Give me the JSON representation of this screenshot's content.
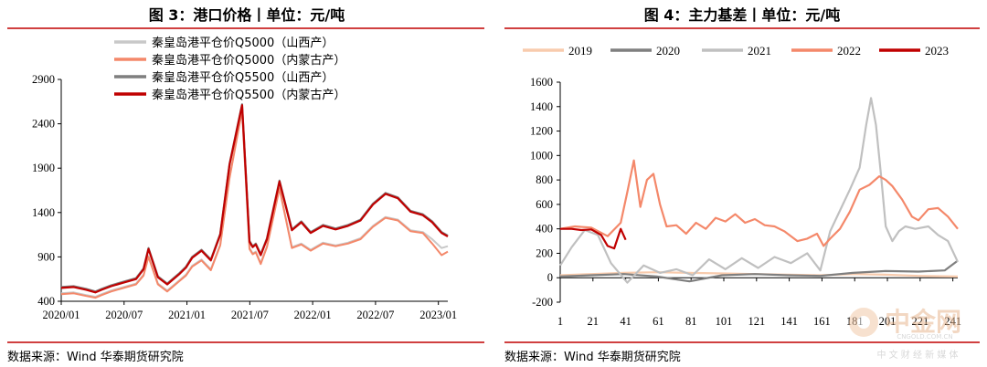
{
  "chart_data": [
    {
      "type": "line",
      "title": "图 3：港口价格丨单位：元/吨",
      "x_tick_labels": [
        "2020/01",
        "2020/07",
        "2021/01",
        "2021/07",
        "2022/01",
        "2022/07",
        "2023/01"
      ],
      "ylim": [
        400,
        2900
      ],
      "y_ticks": [
        400,
        900,
        1400,
        1900,
        2400,
        2900
      ],
      "grid": false,
      "legend_placement": "top-center",
      "series": [
        {
          "name": "秦皇岛港平仓价Q5000（山西产）",
          "color": "#c8c8c8",
          "x": [
            0,
            2,
            4,
            5.5,
            6.5,
            8,
            10,
            12,
            13.2,
            14,
            15.5,
            17,
            19,
            20,
            21,
            22.5,
            24,
            25.5,
            27,
            29,
            30.2,
            30.7,
            31.2,
            32,
            33,
            35,
            37,
            38.5,
            40,
            42,
            44,
            46,
            48,
            50,
            52,
            54,
            56,
            58,
            59.5,
            61,
            62
          ],
          "values": [
            490,
            500,
            470,
            450,
            480,
            520,
            560,
            600,
            700,
            910,
            600,
            520,
            640,
            700,
            800,
            870,
            760,
            1040,
            1800,
            2560,
            1000,
            940,
            960,
            830,
            1020,
            1680,
            1010,
            1050,
            980,
            1060,
            1030,
            1060,
            1110,
            1250,
            1350,
            1320,
            1200,
            1180,
            1100,
            1000,
            1020
          ]
        },
        {
          "name": "秦皇岛港平仓价Q5000（内蒙古产）",
          "color": "#f4886a",
          "x": [
            0,
            2,
            4,
            5.5,
            6.5,
            8,
            10,
            12,
            13.2,
            14,
            15.5,
            17,
            19,
            20,
            21,
            22.5,
            24,
            25.5,
            27,
            29,
            30.2,
            30.7,
            31.2,
            32,
            33,
            35,
            37,
            38.5,
            40,
            42,
            44,
            46,
            48,
            50,
            52,
            54,
            56,
            58,
            59.5,
            61,
            62
          ],
          "values": [
            480,
            490,
            460,
            440,
            470,
            510,
            550,
            590,
            690,
            900,
            590,
            510,
            630,
            690,
            790,
            860,
            750,
            1030,
            1790,
            2550,
            990,
            930,
            950,
            820,
            1010,
            1670,
            1000,
            1040,
            970,
            1050,
            1020,
            1050,
            1100,
            1240,
            1340,
            1310,
            1190,
            1170,
            1050,
            920,
            960
          ]
        },
        {
          "name": "秦皇岛港平仓价Q5500（山西产）",
          "color": "#7f7f7f",
          "x": [
            0,
            2,
            4,
            5.5,
            6.5,
            8,
            10,
            12,
            13.2,
            14,
            15.5,
            17,
            19,
            20,
            21,
            22.5,
            24,
            25.5,
            27,
            29,
            30.2,
            30.7,
            31.2,
            32,
            33,
            35,
            37,
            38.5,
            40,
            42,
            44,
            46,
            48,
            50,
            52,
            54,
            56,
            58,
            59.5,
            61,
            62
          ],
          "values": [
            560,
            570,
            540,
            510,
            540,
            580,
            620,
            660,
            770,
            1000,
            680,
            600,
            720,
            790,
            900,
            980,
            870,
            1160,
            1950,
            2620,
            1080,
            1020,
            1050,
            930,
            1110,
            1760,
            1210,
            1300,
            1180,
            1260,
            1220,
            1260,
            1320,
            1500,
            1620,
            1570,
            1420,
            1380,
            1300,
            1180,
            1140
          ]
        },
        {
          "name": "秦皇岛港平仓价Q5500（内蒙古产）",
          "color": "#c00000",
          "x": [
            0,
            2,
            4,
            5.5,
            6.5,
            8,
            10,
            12,
            13.2,
            14,
            15.5,
            17,
            19,
            20,
            21,
            22.5,
            24,
            25.5,
            27,
            29,
            30.2,
            30.7,
            31.2,
            32,
            33,
            35,
            37,
            38.5,
            40,
            42,
            44,
            46,
            48,
            50,
            52,
            54,
            56,
            58,
            59.5,
            61,
            62
          ],
          "values": [
            550,
            560,
            530,
            500,
            530,
            570,
            610,
            650,
            760,
            990,
            670,
            590,
            710,
            780,
            890,
            970,
            860,
            1150,
            1940,
            2610,
            1070,
            1010,
            1040,
            920,
            1100,
            1750,
            1200,
            1290,
            1170,
            1250,
            1210,
            1250,
            1310,
            1490,
            1610,
            1560,
            1410,
            1370,
            1290,
            1170,
            1130
          ]
        }
      ],
      "source": "数据来源：Wind  华泰期货研究院"
    },
    {
      "type": "line",
      "title": "图 4：主力基差丨单位：元/吨",
      "x_ticks": [
        1,
        21,
        41,
        61,
        81,
        101,
        121,
        141,
        161,
        181,
        201,
        221,
        241
      ],
      "x_tick_labels": [
        "1",
        "21",
        "41",
        "61",
        "81",
        "101",
        "121",
        "141",
        "161",
        "181",
        "201",
        "221",
        "241"
      ],
      "xlim": [
        1,
        244
      ],
      "ylim": [
        -200,
        1600
      ],
      "y_ticks": [
        -200,
        0,
        200,
        400,
        600,
        800,
        1000,
        1200,
        1400,
        1600
      ],
      "grid": false,
      "legend_placement": "top",
      "series": [
        {
          "name": "2019",
          "color": "#f8cbad",
          "x": [
            1,
            20,
            40,
            60,
            80,
            100,
            120,
            140,
            160,
            180,
            200,
            220,
            244
          ],
          "values": [
            20,
            30,
            40,
            45,
            40,
            35,
            30,
            25,
            20,
            30,
            25,
            15,
            10
          ]
        },
        {
          "name": "2020",
          "color": "#7f7f7f",
          "x": [
            1,
            20,
            40,
            60,
            80,
            100,
            120,
            140,
            160,
            180,
            200,
            220,
            236,
            244
          ],
          "values": [
            10,
            20,
            30,
            10,
            -30,
            20,
            30,
            20,
            15,
            40,
            55,
            50,
            60,
            140
          ]
        },
        {
          "name": "2021",
          "color": "#c0c0c0",
          "x": [
            1,
            8,
            16,
            24,
            32,
            42,
            52,
            62,
            72,
            82,
            92,
            102,
            112,
            122,
            132,
            142,
            152,
            160,
            166,
            172,
            178,
            184,
            188,
            191,
            194,
            197,
            200,
            204,
            208,
            212,
            218,
            226,
            232,
            238,
            244
          ],
          "values": [
            100,
            250,
            390,
            350,
            120,
            -40,
            100,
            40,
            70,
            20,
            150,
            70,
            160,
            80,
            170,
            120,
            200,
            60,
            380,
            550,
            720,
            900,
            1250,
            1470,
            1250,
            850,
            420,
            300,
            380,
            420,
            400,
            420,
            350,
            300,
            130
          ]
        },
        {
          "name": "2022",
          "color": "#f4886a",
          "x": [
            1,
            10,
            20,
            30,
            38,
            42,
            46,
            50,
            54,
            58,
            62,
            66,
            72,
            78,
            84,
            90,
            96,
            102,
            108,
            114,
            120,
            126,
            132,
            138,
            146,
            152,
            158,
            162,
            166,
            172,
            178,
            184,
            190,
            196,
            200,
            204,
            210,
            216,
            220,
            226,
            232,
            238,
            244
          ],
          "values": [
            400,
            420,
            410,
            340,
            450,
            700,
            960,
            580,
            800,
            850,
            600,
            420,
            430,
            360,
            450,
            400,
            490,
            460,
            520,
            450,
            480,
            430,
            420,
            380,
            300,
            320,
            360,
            260,
            320,
            400,
            540,
            720,
            760,
            830,
            800,
            750,
            640,
            500,
            470,
            560,
            570,
            500,
            400
          ]
        },
        {
          "name": "2023",
          "color": "#c00000",
          "x": [
            1,
            8,
            14,
            20,
            26,
            30,
            34,
            38,
            41
          ],
          "values": [
            400,
            400,
            390,
            395,
            350,
            260,
            240,
            400,
            310
          ]
        }
      ],
      "source": "数据来源：Wind  华泰期货研究院"
    }
  ],
  "watermark": {
    "brand": "中金网",
    "domain": "CNGOLD.COM.CN",
    "tagline": "中 文 财 经 新 媒 体"
  }
}
